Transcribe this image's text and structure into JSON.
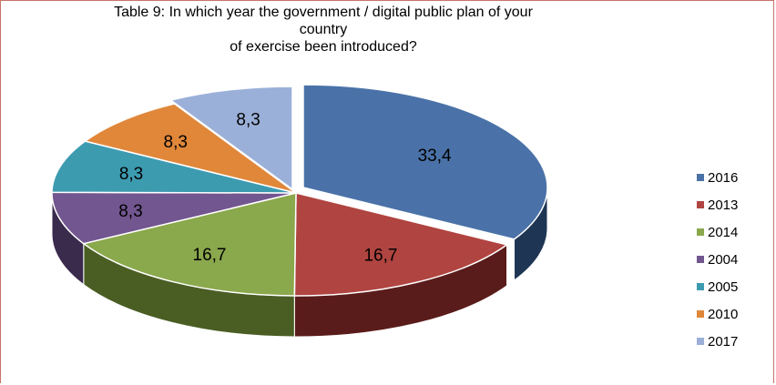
{
  "chart_data": {
    "type": "pie",
    "title_lines": [
      "Table 9: In which year the government / digital public plan of your",
      "country",
      "of exercise been introduced?"
    ],
    "slices": [
      {
        "name": "2016",
        "value": 33.4,
        "label": "33,4",
        "color": "#4a72a8",
        "dark": "#1e3553"
      },
      {
        "name": "2013",
        "value": 16.7,
        "label": "16,7",
        "color": "#b04440",
        "dark": "#5a1c1a"
      },
      {
        "name": "2014",
        "value": 16.7,
        "label": "16,7",
        "color": "#8aa84c",
        "dark": "#4a5e24"
      },
      {
        "name": "2004",
        "value": 8.3,
        "label": "8,3",
        "color": "#72568f",
        "dark": "#3a2a4c"
      },
      {
        "name": "2005",
        "value": 8.3,
        "label": "8,3",
        "color": "#3d9bb0",
        "dark": "#1c5260"
      },
      {
        "name": "2010",
        "value": 8.3,
        "label": "8,3",
        "color": "#e0873a",
        "dark": "#7a4418"
      },
      {
        "name": "2017",
        "value": 8.3,
        "label": "8,3",
        "color": "#9bb0d8",
        "dark": "#5a6a88"
      }
    ],
    "legend_position": "right"
  }
}
